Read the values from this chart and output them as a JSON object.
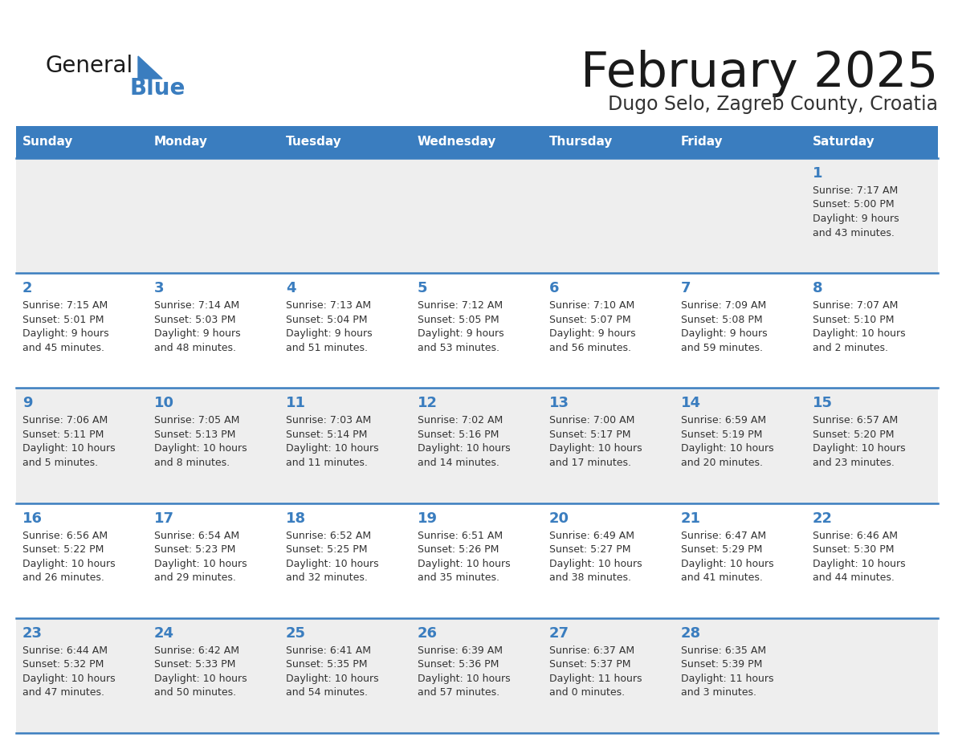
{
  "title": "February 2025",
  "subtitle": "Dugo Selo, Zagreb County, Croatia",
  "header_color": "#3a7dbf",
  "header_text_color": "#ffffff",
  "title_color": "#1a1a1a",
  "subtitle_color": "#333333",
  "day_num_color": "#3a7dbf",
  "cell_text_color": "#333333",
  "grid_line_color": "#3a7dbf",
  "row_colors": [
    "#eeeeee",
    "#ffffff",
    "#eeeeee",
    "#ffffff",
    "#eeeeee"
  ],
  "white_color": "#ffffff",
  "days_of_week": [
    "Sunday",
    "Monday",
    "Tuesday",
    "Wednesday",
    "Thursday",
    "Friday",
    "Saturday"
  ],
  "calendar": [
    [
      null,
      null,
      null,
      null,
      null,
      null,
      {
        "day": 1,
        "sunrise": "7:17 AM",
        "sunset": "5:00 PM",
        "daylight": "9 hours and 43 minutes."
      }
    ],
    [
      {
        "day": 2,
        "sunrise": "7:15 AM",
        "sunset": "5:01 PM",
        "daylight": "9 hours and 45 minutes."
      },
      {
        "day": 3,
        "sunrise": "7:14 AM",
        "sunset": "5:03 PM",
        "daylight": "9 hours and 48 minutes."
      },
      {
        "day": 4,
        "sunrise": "7:13 AM",
        "sunset": "5:04 PM",
        "daylight": "9 hours and 51 minutes."
      },
      {
        "day": 5,
        "sunrise": "7:12 AM",
        "sunset": "5:05 PM",
        "daylight": "9 hours and 53 minutes."
      },
      {
        "day": 6,
        "sunrise": "7:10 AM",
        "sunset": "5:07 PM",
        "daylight": "9 hours and 56 minutes."
      },
      {
        "day": 7,
        "sunrise": "7:09 AM",
        "sunset": "5:08 PM",
        "daylight": "9 hours and 59 minutes."
      },
      {
        "day": 8,
        "sunrise": "7:07 AM",
        "sunset": "5:10 PM",
        "daylight": "10 hours and 2 minutes."
      }
    ],
    [
      {
        "day": 9,
        "sunrise": "7:06 AM",
        "sunset": "5:11 PM",
        "daylight": "10 hours and 5 minutes."
      },
      {
        "day": 10,
        "sunrise": "7:05 AM",
        "sunset": "5:13 PM",
        "daylight": "10 hours and 8 minutes."
      },
      {
        "day": 11,
        "sunrise": "7:03 AM",
        "sunset": "5:14 PM",
        "daylight": "10 hours and 11 minutes."
      },
      {
        "day": 12,
        "sunrise": "7:02 AM",
        "sunset": "5:16 PM",
        "daylight": "10 hours and 14 minutes."
      },
      {
        "day": 13,
        "sunrise": "7:00 AM",
        "sunset": "5:17 PM",
        "daylight": "10 hours and 17 minutes."
      },
      {
        "day": 14,
        "sunrise": "6:59 AM",
        "sunset": "5:19 PM",
        "daylight": "10 hours and 20 minutes."
      },
      {
        "day": 15,
        "sunrise": "6:57 AM",
        "sunset": "5:20 PM",
        "daylight": "10 hours and 23 minutes."
      }
    ],
    [
      {
        "day": 16,
        "sunrise": "6:56 AM",
        "sunset": "5:22 PM",
        "daylight": "10 hours and 26 minutes."
      },
      {
        "day": 17,
        "sunrise": "6:54 AM",
        "sunset": "5:23 PM",
        "daylight": "10 hours and 29 minutes."
      },
      {
        "day": 18,
        "sunrise": "6:52 AM",
        "sunset": "5:25 PM",
        "daylight": "10 hours and 32 minutes."
      },
      {
        "day": 19,
        "sunrise": "6:51 AM",
        "sunset": "5:26 PM",
        "daylight": "10 hours and 35 minutes."
      },
      {
        "day": 20,
        "sunrise": "6:49 AM",
        "sunset": "5:27 PM",
        "daylight": "10 hours and 38 minutes."
      },
      {
        "day": 21,
        "sunrise": "6:47 AM",
        "sunset": "5:29 PM",
        "daylight": "10 hours and 41 minutes."
      },
      {
        "day": 22,
        "sunrise": "6:46 AM",
        "sunset": "5:30 PM",
        "daylight": "10 hours and 44 minutes."
      }
    ],
    [
      {
        "day": 23,
        "sunrise": "6:44 AM",
        "sunset": "5:32 PM",
        "daylight": "10 hours and 47 minutes."
      },
      {
        "day": 24,
        "sunrise": "6:42 AM",
        "sunset": "5:33 PM",
        "daylight": "10 hours and 50 minutes."
      },
      {
        "day": 25,
        "sunrise": "6:41 AM",
        "sunset": "5:35 PM",
        "daylight": "10 hours and 54 minutes."
      },
      {
        "day": 26,
        "sunrise": "6:39 AM",
        "sunset": "5:36 PM",
        "daylight": "10 hours and 57 minutes."
      },
      {
        "day": 27,
        "sunrise": "6:37 AM",
        "sunset": "5:37 PM",
        "daylight": "11 hours and 0 minutes."
      },
      {
        "day": 28,
        "sunrise": "6:35 AM",
        "sunset": "5:39 PM",
        "daylight": "11 hours and 3 minutes."
      },
      null
    ]
  ]
}
